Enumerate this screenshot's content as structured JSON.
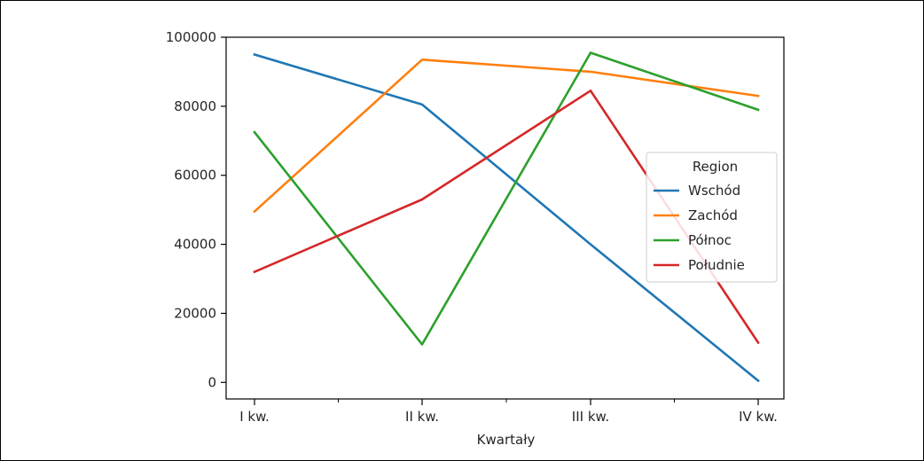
{
  "chart_data": {
    "type": "line",
    "title": "",
    "xlabel": "Kwartały",
    "ylabel": "",
    "categories": [
      "I kw.",
      "II kw.",
      "III kw.",
      "IV kw."
    ],
    "ylim": [
      -4800,
      100000
    ],
    "yticks": [
      0,
      20000,
      40000,
      60000,
      80000,
      100000
    ],
    "grid": false,
    "legend": {
      "title": "Region",
      "placement": "center-right"
    },
    "series": [
      {
        "name": "Wschód",
        "color": "#1f77b4",
        "values": [
          95000,
          80500,
          40000,
          500
        ]
      },
      {
        "name": "Zachód",
        "color": "#ff7f0e",
        "values": [
          49500,
          93500,
          90000,
          83000
        ]
      },
      {
        "name": "Północ",
        "color": "#2ca02c",
        "values": [
          72500,
          11000,
          95500,
          79000
        ]
      },
      {
        "name": "Południe",
        "color": "#d62728",
        "values": [
          32000,
          53000,
          84500,
          11500
        ]
      }
    ]
  }
}
